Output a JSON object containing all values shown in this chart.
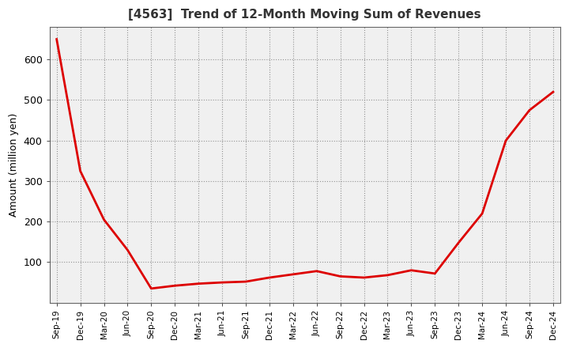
{
  "title": "[4563]  Trend of 12-Month Moving Sum of Revenues",
  "ylabel": "Amount (million yen)",
  "line_color": "#dd0000",
  "background_color": "#ffffff",
  "plot_bg_color": "#f0f0f0",
  "ylim": [
    0,
    680
  ],
  "yticks": [
    100,
    200,
    300,
    400,
    500,
    600
  ],
  "x_labels": [
    "Sep-19",
    "Dec-19",
    "Mar-20",
    "Jun-20",
    "Sep-20",
    "Dec-20",
    "Mar-21",
    "Jun-21",
    "Sep-21",
    "Dec-21",
    "Mar-22",
    "Jun-22",
    "Sep-22",
    "Dec-22",
    "Mar-23",
    "Jun-23",
    "Sep-23",
    "Dec-23",
    "Mar-24",
    "Jun-24",
    "Sep-24",
    "Dec-24"
  ],
  "values": [
    650,
    325,
    205,
    130,
    35,
    42,
    47,
    50,
    52,
    62,
    70,
    78,
    65,
    62,
    68,
    80,
    72,
    148,
    220,
    400,
    475,
    520
  ]
}
